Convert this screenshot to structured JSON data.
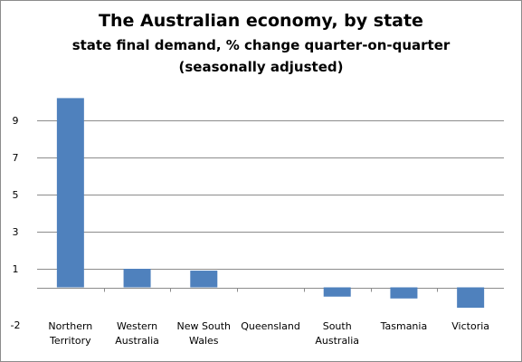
{
  "chart_data": {
    "type": "bar",
    "title": "The Australian economy, by state",
    "subtitle": "state final demand, % change quarter-on-quarter",
    "subtitle2": "(seasonally adjusted)",
    "xlabel": "",
    "ylabel": "",
    "categories": [
      [
        "Northern",
        "Territory"
      ],
      [
        "Western",
        "Australia"
      ],
      [
        "New South",
        "Wales"
      ],
      [
        "Queensland"
      ],
      [
        "South",
        "Australia"
      ],
      [
        "Tasmania"
      ],
      [
        "Victoria"
      ]
    ],
    "values": [
      10.2,
      1.0,
      0.9,
      0.0,
      -0.5,
      -0.6,
      -1.1
    ],
    "yticks": [
      -2,
      1,
      3,
      5,
      7,
      9
    ],
    "ylim": [
      -2,
      11
    ],
    "grid": true,
    "legend": "none",
    "bar_color": "#4f81bd",
    "grid_color": "#8c8c8c"
  }
}
